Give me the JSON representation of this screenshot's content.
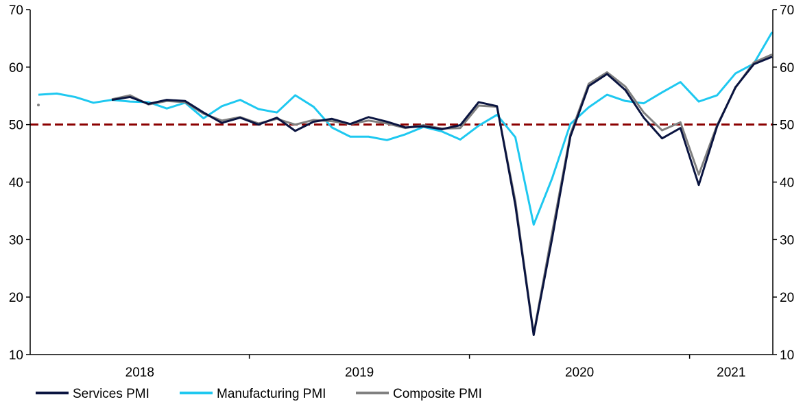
{
  "chart_data": {
    "type": "line",
    "title": "",
    "xlabel": "",
    "ylabel": "",
    "ylim": [
      10,
      70
    ],
    "y_ticks": [
      10,
      20,
      30,
      40,
      50,
      60,
      70
    ],
    "y_tick_labels": [
      "10",
      "20",
      "30",
      "40",
      "50",
      "60",
      "70"
    ],
    "right_axis": true,
    "x_year_labels": [
      "2018",
      "2019",
      "2020",
      "2021"
    ],
    "x_range": [
      "2018-01",
      "2021-05"
    ],
    "grid": false,
    "reference_line": {
      "y": 50,
      "style": "dashed",
      "color": "#8b0000"
    },
    "legend_position": "bottom-left",
    "x": [
      "2018-01",
      "2018-02",
      "2018-03",
      "2018-04",
      "2018-05",
      "2018-06",
      "2018-07",
      "2018-08",
      "2018-09",
      "2018-10",
      "2018-11",
      "2018-12",
      "2019-01",
      "2019-02",
      "2019-03",
      "2019-04",
      "2019-05",
      "2019-06",
      "2019-07",
      "2019-08",
      "2019-09",
      "2019-10",
      "2019-11",
      "2019-12",
      "2020-01",
      "2020-02",
      "2020-03",
      "2020-04",
      "2020-05",
      "2020-06",
      "2020-07",
      "2020-08",
      "2020-09",
      "2020-10",
      "2020-11",
      "2020-12",
      "2021-01",
      "2021-02",
      "2021-03",
      "2021-04",
      "2021-05"
    ],
    "series": [
      {
        "name": "Services PMI",
        "color": "#0a1440",
        "values": [
          null,
          null,
          null,
          null,
          54.3,
          54.8,
          53.6,
          54.3,
          54.1,
          52.1,
          50.3,
          51.2,
          50.0,
          51.2,
          48.9,
          50.5,
          51.0,
          50.1,
          51.3,
          50.5,
          49.5,
          49.7,
          49.2,
          49.9,
          53.9,
          53.2,
          36.0,
          13.4,
          30.1,
          47.9,
          56.7,
          58.8,
          56.0,
          51.2,
          47.6,
          49.4,
          39.5,
          49.7,
          56.5,
          60.5,
          61.8
        ]
      },
      {
        "name": "Manufacturing PMI",
        "color": "#1ec8f0",
        "values": [
          55.2,
          55.4,
          54.8,
          53.8,
          54.3,
          54.0,
          53.9,
          52.8,
          53.8,
          51.1,
          53.2,
          54.3,
          52.7,
          52.1,
          55.1,
          53.1,
          49.5,
          47.9,
          47.9,
          47.3,
          48.3,
          49.6,
          48.8,
          47.4,
          49.8,
          51.7,
          47.8,
          32.6,
          40.6,
          50.1,
          53.0,
          55.2,
          54.1,
          53.7,
          55.6,
          57.4,
          54.0,
          55.1,
          58.9,
          60.6,
          66.1
        ]
      },
      {
        "name": "Composite PMI",
        "color": "#808080",
        "values": [
          53.4,
          null,
          null,
          null,
          54.4,
          55.1,
          53.5,
          54.1,
          53.9,
          51.9,
          50.7,
          51.3,
          50.2,
          51.0,
          50.0,
          50.8,
          50.6,
          50.1,
          50.7,
          50.2,
          49.4,
          49.9,
          49.3,
          49.4,
          53.3,
          53.1,
          36.7,
          13.6,
          31.1,
          48.3,
          57.1,
          59.1,
          56.6,
          52.1,
          49.0,
          50.4,
          41.3,
          49.9,
          56.4,
          60.8,
          62.2
        ]
      }
    ]
  }
}
